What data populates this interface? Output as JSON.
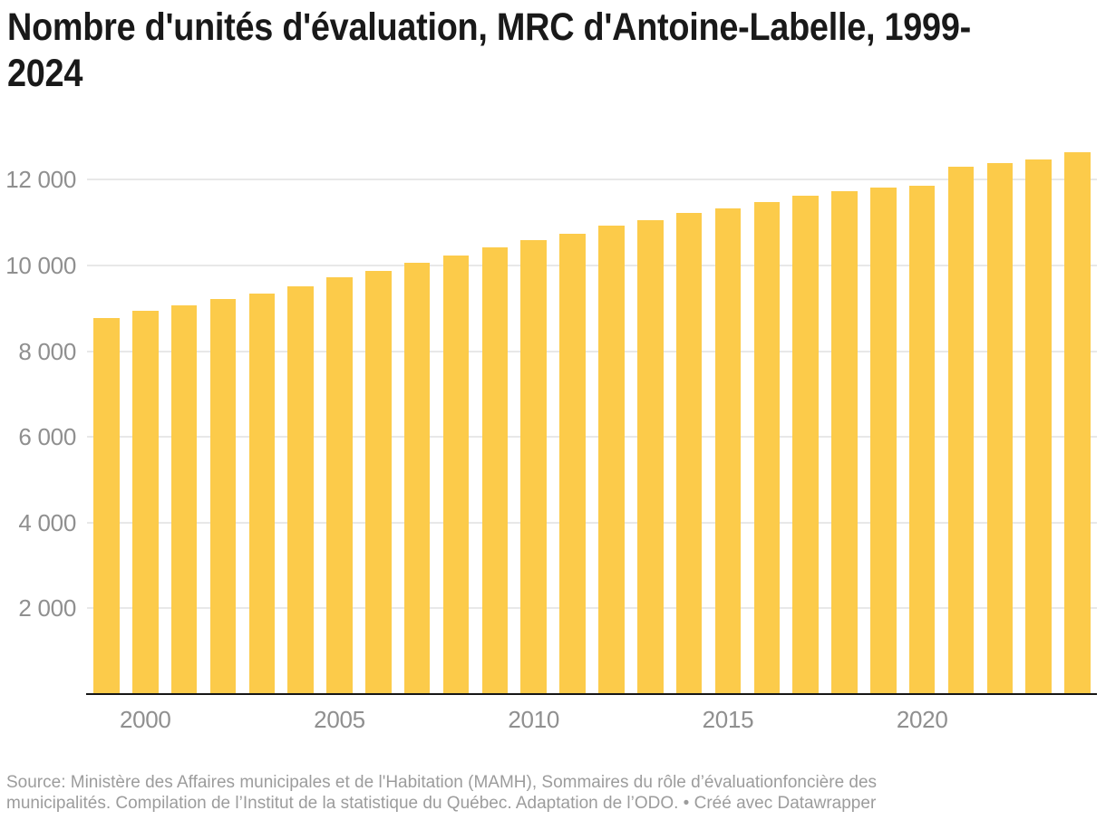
{
  "title": {
    "text": "Nombre d'unités d'évaluation, MRC d'Antoine-Labelle, 1999-2024",
    "lines": [
      "Nombre d'unités d'évaluation, MRC d'Antoine-Labelle, 1999-",
      "2024"
    ]
  },
  "footer": {
    "text": "Source: Ministère des Affaires municipales et de l'Habitation (MAMH), Sommaires du rôle d’évaluationfoncière des municipalités. Compilation de l’Institut de la statistique du Québec. Adaptation de l’ODO. • Créé avec Datawrapper",
    "lines": [
      "Source: Ministère des Affaires municipales et de l'Habitation (MAMH), Sommaires du rôle d’évaluationfoncière des",
      "municipalités. Compilation de l’Institut de la statistique du Québec. Adaptation de l’ODO. • Créé avec Datawrapper"
    ]
  },
  "chart_data": {
    "type": "bar",
    "title": "Nombre d'unités d'évaluation, MRC d'Antoine-Labelle, 1999-2024",
    "categories": [
      1999,
      2000,
      2001,
      2002,
      2003,
      2004,
      2005,
      2006,
      2007,
      2008,
      2009,
      2010,
      2011,
      2012,
      2013,
      2014,
      2015,
      2016,
      2017,
      2018,
      2019,
      2020,
      2021,
      2022,
      2023,
      2024
    ],
    "values": [
      8770,
      8950,
      9060,
      9220,
      9350,
      9520,
      9720,
      9870,
      10060,
      10230,
      10430,
      10600,
      10740,
      10930,
      11060,
      11220,
      11320,
      11480,
      11630,
      11730,
      11810,
      11860,
      12300,
      12390,
      12480,
      12650
    ],
    "xlabel": "",
    "ylabel": "",
    "ylim": [
      0,
      13000
    ],
    "x_ticks": [
      2000,
      2005,
      2010,
      2015,
      2020
    ],
    "y_ticks": [
      {
        "value": 2000,
        "label": "2 000"
      },
      {
        "value": 4000,
        "label": "4 000"
      },
      {
        "value": 6000,
        "label": "6 000"
      },
      {
        "value": 8000,
        "label": "8 000"
      },
      {
        "value": 10000,
        "label": "10 000"
      },
      {
        "value": 12000,
        "label": "12 000"
      }
    ],
    "grid": "horizontal, behind bars",
    "legend": "none",
    "colors": {
      "bar": "#fccb4a",
      "grid": "#e8e8e8",
      "axis_line": "#161616",
      "tick_text": "#8f8f8f",
      "title_text": "#191919",
      "footer_text": "#9c9c9c",
      "background": "#ffffff"
    }
  }
}
